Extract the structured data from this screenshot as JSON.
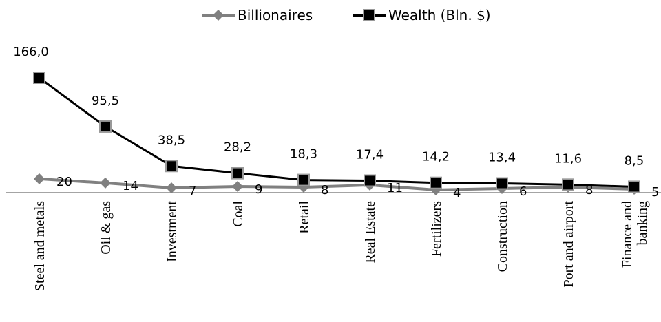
{
  "chart_data": {
    "type": "line",
    "categories": [
      "Steel and metals",
      "Oil & gas",
      "Investment",
      "Coal",
      "Retail",
      "Real Estate",
      "Fertilizers",
      "Construction",
      "Port and airport",
      "Finance and\nbanking"
    ],
    "series": [
      {
        "name": "Billionaires",
        "color": "#808080",
        "marker": "diamond",
        "values": [
          20,
          14,
          7,
          9,
          8,
          11,
          4,
          6,
          8,
          5
        ]
      },
      {
        "name": "Wealth (Bln. $)",
        "color": "#000000",
        "marker": "square",
        "values": [
          166.0,
          95.5,
          38.5,
          28.2,
          18.3,
          17.4,
          14.2,
          13.4,
          11.6,
          8.5
        ],
        "value_labels": [
          "166,0",
          "95,5",
          "38,5",
          "28,2",
          "18,3",
          "17,4",
          "14,2",
          "13,4",
          "11,6",
          "8,5"
        ]
      }
    ],
    "legend": "top"
  }
}
